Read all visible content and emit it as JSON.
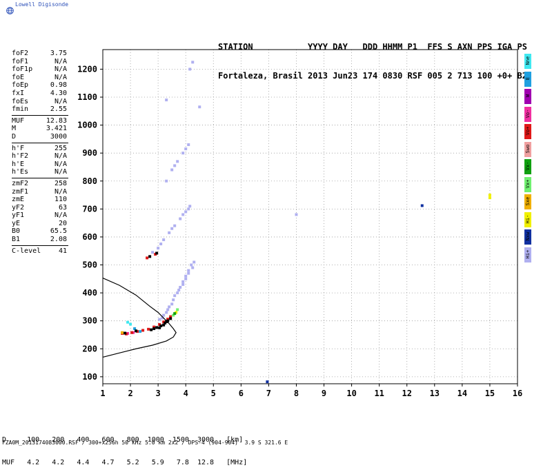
{
  "logo": {
    "text": "Lowell Digisonde"
  },
  "header": {
    "line1": "STATION           YYYY DAY   DDD HHMM P1  FFS S AXN PPS IGA PS",
    "line2": "Fortaleza, Brasil 2013 Jun23 174 0830 RSF 005 2 713 100 +0+ B2"
  },
  "params": {
    "group1": [
      {
        "label": "foF2",
        "value": "3.75"
      },
      {
        "label": "foF1",
        "value": "N/A"
      },
      {
        "label": "foF1p",
        "value": "N/A"
      },
      {
        "label": "foE",
        "value": "N/A"
      },
      {
        "label": "foEp",
        "value": "0.98"
      },
      {
        "label": "fxI",
        "value": "4.30"
      },
      {
        "label": "foEs",
        "value": "N/A"
      },
      {
        "label": "fmin",
        "value": "2.55"
      }
    ],
    "group2": [
      {
        "label": "MUF",
        "value": "12.83"
      },
      {
        "label": "M",
        "value": "3.421"
      },
      {
        "label": "D",
        "value": "3000"
      }
    ],
    "group3": [
      {
        "label": "h'F",
        "value": "255"
      },
      {
        "label": "h'F2",
        "value": "N/A"
      },
      {
        "label": "h'E",
        "value": "N/A"
      },
      {
        "label": "h'Es",
        "value": "N/A"
      }
    ],
    "group4": [
      {
        "label": "zmF2",
        "value": "258"
      },
      {
        "label": "zmF1",
        "value": "N/A"
      },
      {
        "label": "zmE",
        "value": "110"
      },
      {
        "label": "yF2",
        "value": "63"
      },
      {
        "label": "yF1",
        "value": "N/A"
      },
      {
        "label": "yE",
        "value": "20"
      },
      {
        "label": "B0",
        "value": "65.5"
      },
      {
        "label": "B1",
        "value": "2.08"
      }
    ],
    "group5": [
      {
        "label": "C-level",
        "value": "41"
      }
    ]
  },
  "legend": [
    {
      "label": "Nne",
      "color": "#40e8f0"
    },
    {
      "label": "E",
      "color": "#1fa0e0"
    },
    {
      "label": "W",
      "color": "#a000b0"
    },
    {
      "label": "Vo-",
      "color": "#f030a0"
    },
    {
      "label": "Vo+",
      "color": "#e01818"
    },
    {
      "label": "Swo",
      "color": "#f0a0a0"
    },
    {
      "label": "Vx-",
      "color": "#10a010"
    },
    {
      "label": "Vx+",
      "color": "#70f070"
    },
    {
      "label": "Sxe",
      "color": "#f0b000"
    },
    {
      "label": "Hi-",
      "color": "#f0f000"
    },
    {
      "label": "Nxw",
      "color": "#1030a0"
    },
    {
      "label": "Hi+",
      "color": "#b0b0f0"
    }
  ],
  "bottom": {
    "line1": "D     100   200   400   600   800  1000  1500  3000   [km]",
    "line2": "MUF   4.2   4.2   4.4   4.7   5.2   5.9   7.8  12.8   [MHz]",
    "footer": "FZA0M_2013174083000.RSF / 300+x256h 50 kHz 5.0 km 2x2 / DPS-4 (904-904)  3.9 S 321.6 E"
  },
  "chart_data": {
    "type": "scatter",
    "xlim": [
      1,
      16
    ],
    "ylim": [
      75,
      1270
    ],
    "x_ticks": [
      1,
      2,
      3,
      4,
      5,
      6,
      7,
      8,
      9,
      10,
      11,
      12,
      13,
      14,
      15,
      16
    ],
    "y_ticks": [
      100,
      200,
      300,
      400,
      500,
      600,
      700,
      800,
      900,
      1000,
      1100,
      1200
    ],
    "grid": true,
    "profile_curve": {
      "color": "#000000",
      "points": [
        [
          1.0,
          453
        ],
        [
          1.6,
          427
        ],
        [
          2.2,
          392
        ],
        [
          2.7,
          352
        ],
        [
          3.0,
          330
        ],
        [
          3.25,
          305
        ],
        [
          3.4,
          290
        ],
        [
          3.55,
          272
        ],
        [
          3.65,
          258
        ],
        [
          3.55,
          242
        ],
        [
          3.3,
          228
        ],
        [
          2.8,
          213
        ],
        [
          2.2,
          200
        ],
        [
          1.6,
          185
        ],
        [
          1.0,
          170
        ]
      ]
    },
    "traces": [
      {
        "name": "Hi+",
        "color": "#b0b0f0",
        "points": [
          [
            3.3,
            330
          ],
          [
            3.4,
            350
          ],
          [
            3.55,
            375
          ],
          [
            3.7,
            400
          ],
          [
            3.8,
            420
          ],
          [
            3.9,
            440
          ],
          [
            4.0,
            460
          ],
          [
            4.1,
            480
          ],
          [
            4.2,
            500
          ],
          [
            4.3,
            510
          ],
          [
            3.2,
            320
          ],
          [
            3.6,
            390
          ],
          [
            3.9,
            430
          ],
          [
            4.1,
            470
          ],
          [
            3.05,
            305
          ],
          [
            3.15,
            310
          ],
          [
            3.35,
            340
          ],
          [
            3.5,
            360
          ],
          [
            3.75,
            410
          ],
          [
            4.0,
            450
          ],
          [
            4.25,
            490
          ],
          [
            2.8,
            545
          ],
          [
            3.0,
            560
          ],
          [
            3.2,
            590
          ],
          [
            3.4,
            615
          ],
          [
            3.6,
            640
          ],
          [
            3.8,
            665
          ],
          [
            4.0,
            690
          ],
          [
            4.15,
            710
          ],
          [
            3.1,
            575
          ],
          [
            3.5,
            630
          ],
          [
            3.9,
            680
          ],
          [
            4.1,
            700
          ],
          [
            3.3,
            800
          ],
          [
            3.5,
            840
          ],
          [
            3.7,
            870
          ],
          [
            3.9,
            900
          ],
          [
            4.1,
            930
          ],
          [
            3.6,
            855
          ],
          [
            4.0,
            915
          ],
          [
            4.15,
            1200
          ],
          [
            4.25,
            1225
          ],
          [
            3.3,
            1090
          ],
          [
            4.5,
            1065
          ],
          [
            8.0,
            680
          ]
        ]
      },
      {
        "name": "Vo-",
        "color": "#f030a0",
        "points": [
          [
            1.9,
            255
          ],
          [
            2.1,
            258
          ]
        ]
      },
      {
        "name": "Vo+",
        "color": "#e01818",
        "points": [
          [
            1.7,
            255
          ],
          [
            1.85,
            253
          ],
          [
            2.05,
            258
          ],
          [
            2.25,
            262
          ],
          [
            2.45,
            266
          ],
          [
            2.65,
            270
          ],
          [
            2.85,
            278
          ],
          [
            3.05,
            287
          ],
          [
            3.2,
            296
          ],
          [
            3.35,
            306
          ],
          [
            3.45,
            315
          ],
          [
            2.6,
            525
          ],
          [
            2.9,
            538
          ]
        ]
      },
      {
        "name": "Hi-",
        "color": "#f0f000",
        "points": [
          [
            3.65,
            330
          ],
          [
            15.0,
            750
          ],
          [
            15.0,
            740
          ]
        ]
      },
      {
        "name": "Vx+",
        "color": "#70f070",
        "points": [
          [
            3.55,
            320
          ],
          [
            3.7,
            340
          ]
        ]
      },
      {
        "name": "Vx-",
        "color": "#10a010",
        "points": [
          [
            3.6,
            326
          ]
        ]
      },
      {
        "name": "Nne",
        "color": "#40e8f0",
        "points": [
          [
            1.9,
            295
          ],
          [
            2.0,
            288
          ]
        ]
      },
      {
        "name": "E",
        "color": "#1fa0e0",
        "points": [
          [
            2.15,
            272
          ],
          [
            2.35,
            262
          ]
        ]
      },
      {
        "name": "Nxw",
        "color": "#1030a0",
        "points": [
          [
            12.55,
            712
          ],
          [
            6.95,
            82
          ]
        ]
      },
      {
        "name": "Sxe",
        "color": "#f0b000",
        "points": [
          [
            1.7,
            258
          ]
        ]
      },
      {
        "name": "black",
        "color": "#000000",
        "points": [
          [
            2.75,
            268
          ],
          [
            2.95,
            276
          ],
          [
            3.1,
            282
          ],
          [
            3.25,
            292
          ],
          [
            3.35,
            300
          ],
          [
            3.45,
            308
          ],
          [
            3.2,
            285
          ],
          [
            3.05,
            275
          ],
          [
            2.85,
            272
          ],
          [
            3.3,
            297
          ],
          [
            2.7,
            530
          ],
          [
            2.95,
            542
          ],
          [
            1.8,
            256
          ],
          [
            2.2,
            264
          ]
        ]
      }
    ]
  }
}
